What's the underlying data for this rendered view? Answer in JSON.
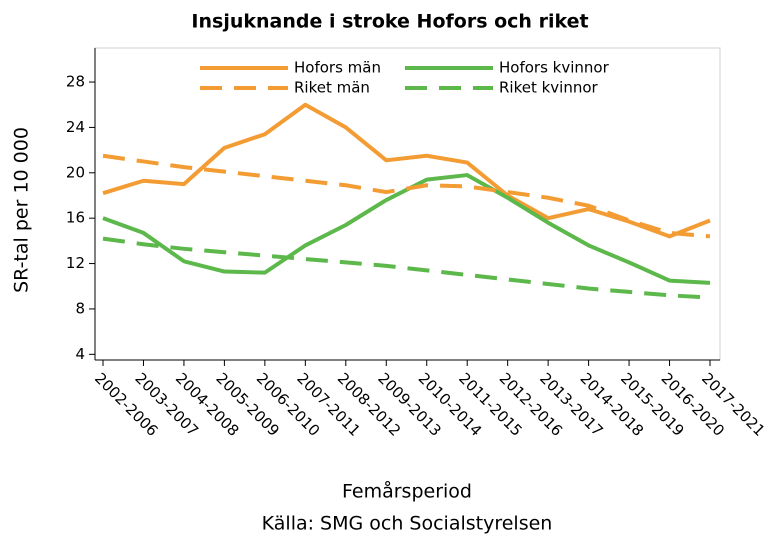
{
  "chart_data": {
    "type": "line",
    "title": "Insjuknande i stroke Hofors och riket",
    "ylabel": "SR-tal per 10 000",
    "xlabel": "Femårsperiod",
    "source": "Källa: SMG och Socialstyrelsen",
    "categories": [
      "2002-2006",
      "2003-2007",
      "2004-2008",
      "2005-2009",
      "2006-2010",
      "2007-2011",
      "2008-2012",
      "2009-2013",
      "2010-2014",
      "2011-2015",
      "2012-2016",
      "2013-2017",
      "2014-2018",
      "2015-2019",
      "2016-2020",
      "2017-2021"
    ],
    "series": [
      {
        "name": "Hofors män",
        "color": "#f39c34",
        "dashed": false,
        "values": [
          18.2,
          19.3,
          19.0,
          22.2,
          23.4,
          26.0,
          24.0,
          21.1,
          21.5,
          20.9,
          18.0,
          16.0,
          16.8,
          15.7,
          14.4,
          15.8
        ]
      },
      {
        "name": "Hofors kvinnor",
        "color": "#5cb84a",
        "dashed": false,
        "values": [
          16.0,
          14.7,
          12.2,
          11.3,
          11.2,
          13.6,
          15.4,
          17.6,
          19.4,
          19.8,
          17.8,
          15.6,
          13.6,
          12.1,
          10.5,
          10.3
        ]
      },
      {
        "name": "Riket män",
        "color": "#f39c34",
        "dashed": true,
        "values": [
          21.5,
          21.0,
          20.5,
          20.1,
          19.7,
          19.3,
          18.9,
          18.3,
          18.9,
          18.8,
          18.3,
          17.8,
          17.1,
          15.8,
          14.7,
          14.4
        ]
      },
      {
        "name": "Riket kvinnor",
        "color": "#5cb84a",
        "dashed": true,
        "values": [
          14.2,
          13.7,
          13.3,
          13.0,
          12.7,
          12.4,
          12.1,
          11.8,
          11.4,
          11.0,
          10.6,
          10.2,
          9.8,
          9.5,
          9.2,
          9.0
        ]
      }
    ],
    "ylim": [
      3.5,
      31
    ],
    "yticks": [
      4,
      8,
      12,
      16,
      20,
      24,
      28
    ],
    "grid": false,
    "legend": "top"
  }
}
